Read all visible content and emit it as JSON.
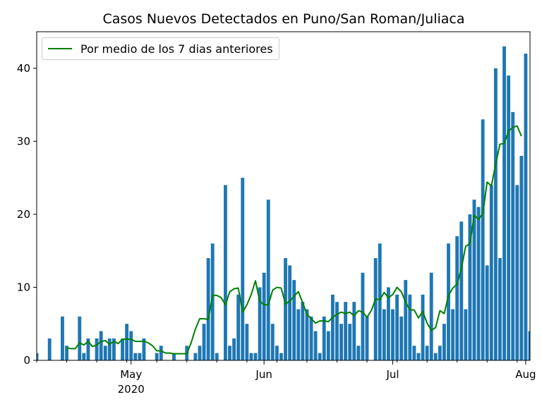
{
  "chart_data": {
    "type": "bar",
    "title": "Casos Nuevos Detectados en Puno/San Roman/Juliaca",
    "xlabel": "",
    "ylabel": "",
    "x_start": "2020-04-09",
    "ylim": [
      0,
      45
    ],
    "yticks": [
      0,
      10,
      20,
      30,
      40
    ],
    "xticks": [
      {
        "label": "May",
        "sublabel": "2020",
        "date": "2020-05-01"
      },
      {
        "label": "Jun",
        "date": "2020-06-01"
      },
      {
        "label": "Jul",
        "date": "2020-07-01"
      },
      {
        "label": "Aug",
        "date": "2020-08-01"
      }
    ],
    "legend": {
      "position": "upper-left",
      "entries": [
        "Por medio de los 7 dias anteriores"
      ]
    },
    "bar_color": "#1f77b4",
    "line_color": "#008000",
    "series": [
      {
        "kind": "bar",
        "values": [
          1,
          0,
          0,
          3,
          0,
          0,
          6,
          2,
          0,
          0,
          6,
          1,
          3,
          0,
          3,
          4,
          2,
          3,
          3,
          0,
          3,
          5,
          4,
          1,
          1,
          3,
          0,
          0,
          1,
          2,
          0,
          0,
          1,
          0,
          0,
          2,
          0,
          1,
          2,
          5,
          14,
          16,
          1,
          0,
          24,
          2,
          3,
          9,
          25,
          5,
          1,
          1,
          10,
          12,
          22,
          5,
          2,
          1,
          14,
          13,
          11,
          7,
          8,
          7,
          6,
          4,
          1,
          6,
          4,
          9,
          8,
          5,
          8,
          5,
          8,
          2,
          12,
          6,
          0,
          14,
          16,
          7,
          10,
          7,
          9,
          6,
          11,
          9,
          2,
          1,
          9,
          2,
          12,
          1,
          2,
          5,
          16,
          7,
          17,
          19,
          7,
          20,
          22,
          21,
          33,
          13,
          24,
          40,
          14,
          43,
          39,
          34,
          24,
          28,
          42,
          4
        ]
      },
      {
        "kind": "line",
        "name": "Por medio de los 7 dias anteriores",
        "values": [
          null,
          null,
          null,
          null,
          null,
          null,
          null,
          1.7,
          1.6,
          1.6,
          2.4,
          2.1,
          2.6,
          1.9,
          2.1,
          2.6,
          2.7,
          2.2,
          2.6,
          2.3,
          2.9,
          2.9,
          2.9,
          2.6,
          2.6,
          2.6,
          2.4,
          2.0,
          1.3,
          1.3,
          1.0,
          1.0,
          0.9,
          0.9,
          0.9,
          0.9,
          2.4,
          4.3,
          5.7,
          5.7,
          5.6,
          8.9,
          8.9,
          8.6,
          7.6,
          9.4,
          9.8,
          9.9,
          6.6,
          7.6,
          9.0,
          10.9,
          8.1,
          7.6,
          7.6,
          9.6,
          10.0,
          9.9,
          7.7,
          8.1,
          8.8,
          9.4,
          7.9,
          6.3,
          5.7,
          5.1,
          5.4,
          5.4,
          5.3,
          5.9,
          6.3,
          6.6,
          6.4,
          6.6,
          6.1,
          6.8,
          6.6,
          5.9,
          6.8,
          8.4,
          8.3,
          9.3,
          8.6,
          9.0,
          10.0,
          9.4,
          8.0,
          6.9,
          6.9,
          5.8,
          6.7,
          5.1,
          4.1,
          4.5,
          6.8,
          6.4,
          8.9,
          9.9,
          10.4,
          12.6,
          15.6,
          16.0,
          19.9,
          19.3,
          20.1,
          24.4,
          23.9,
          26.9,
          29.6,
          29.7,
          31.4,
          31.9,
          32.1,
          30.7
        ]
      }
    ]
  }
}
